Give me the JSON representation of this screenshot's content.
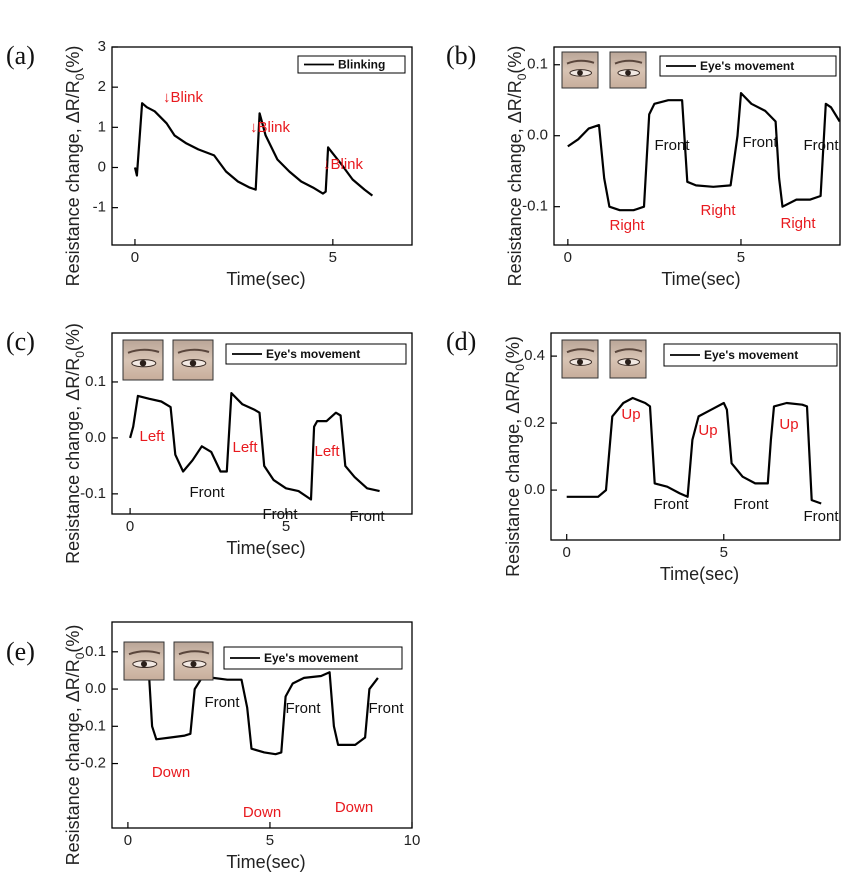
{
  "chart_data": [
    {
      "type": "line",
      "label": "(a)",
      "xlabel": "Time(sec)",
      "ylabel": [
        "Resistance change, ΔR/R",
        "0",
        "(%)"
      ],
      "xlim": [
        -0.58,
        7.0
      ],
      "ylim": [
        -1.93,
        3
      ],
      "xticks": [
        0,
        5
      ],
      "yticks": [
        -1,
        0,
        1,
        2,
        3
      ],
      "x": [
        0,
        0.05,
        0.18,
        0.3,
        0.5,
        0.8,
        1.0,
        1.3,
        1.6,
        2.0,
        2.3,
        2.6,
        2.9,
        3.05,
        3.15,
        3.3,
        3.6,
        3.9,
        4.2,
        4.5,
        4.75,
        4.82,
        4.88,
        5.0,
        5.2,
        5.5,
        5.8,
        6.0
      ],
      "series": [
        {
          "name": "Blinking",
          "color": "#000000",
          "values": [
            0,
            -0.2,
            1.6,
            1.5,
            1.4,
            1.1,
            0.8,
            0.6,
            0.45,
            0.3,
            -0.1,
            -0.35,
            -0.5,
            -0.55,
            1.35,
            0.8,
            0.2,
            -0.1,
            -0.35,
            -0.5,
            -0.65,
            -0.6,
            0.5,
            0.35,
            0.1,
            -0.3,
            -0.55,
            -0.7
          ]
        }
      ],
      "annotations": [
        {
          "text": "↓Blink",
          "color": "#e8191e"
        },
        {
          "text": "↓Blink",
          "color": "#e8191e"
        },
        {
          "text": "↓Blink",
          "color": "#e8191e"
        }
      ]
    },
    {
      "type": "line",
      "label": "(b)",
      "xlabel": "Time(sec)",
      "ylabel": [
        "Resistance change, ΔR/R",
        "0",
        "(%)"
      ],
      "xlim": [
        -0.4,
        7.86
      ],
      "ylim": [
        -0.154,
        0.125
      ],
      "xticks": [
        0,
        5
      ],
      "yticks": [
        -0.1,
        {
          "value": 0,
          "label": "0.0"
        },
        0.1
      ],
      "x": [
        0,
        0.3,
        0.6,
        0.9,
        1.05,
        1.2,
        1.5,
        1.9,
        2.2,
        2.35,
        2.5,
        2.9,
        3.3,
        3.45,
        3.7,
        4.2,
        4.7,
        4.9,
        5.0,
        5.3,
        5.7,
        6.0,
        6.1,
        6.2,
        6.6,
        7.0,
        7.3,
        7.45,
        7.6,
        7.85
      ],
      "series": [
        {
          "name": "Eye's movement",
          "color": "#000000",
          "values": [
            -0.015,
            -0.005,
            0.01,
            0.015,
            -0.06,
            -0.1,
            -0.105,
            -0.105,
            -0.1,
            0.03,
            0.045,
            0.05,
            0.05,
            -0.065,
            -0.07,
            -0.072,
            -0.07,
            0.0,
            0.06,
            0.045,
            0.035,
            0.02,
            -0.06,
            -0.1,
            -0.09,
            -0.09,
            -0.085,
            0.045,
            0.04,
            0.02
          ]
        }
      ],
      "annotations": [
        {
          "text": "Right",
          "color": "#e8191e"
        },
        {
          "text": "Front",
          "color": "#111111"
        },
        {
          "text": "Right",
          "color": "#e8191e"
        },
        {
          "text": "Front",
          "color": "#111111"
        },
        {
          "text": "Right",
          "color": "#e8191e"
        },
        {
          "text": "Front",
          "color": "#111111"
        }
      ]
    },
    {
      "type": "line",
      "label": "(c)",
      "xlabel": "Time(sec)",
      "ylabel": [
        "Resistance change, ΔR/R",
        "0",
        "(%)"
      ],
      "xlim": [
        -0.58,
        9.04
      ],
      "ylim": [
        -0.136,
        0.1875
      ],
      "xticks": [
        0,
        5
      ],
      "yticks": [
        -0.1,
        {
          "value": 0,
          "label": "0.0"
        },
        0.1
      ],
      "x": [
        0,
        0.1,
        0.25,
        0.6,
        1.0,
        1.3,
        1.45,
        1.7,
        2.0,
        2.3,
        2.6,
        2.9,
        3.1,
        3.25,
        3.6,
        4.0,
        4.15,
        4.3,
        4.6,
        5.0,
        5.4,
        5.8,
        5.9,
        6.0,
        6.3,
        6.6,
        6.75,
        6.9,
        7.2,
        7.6,
        8.0
      ],
      "series": [
        {
          "name": "Eye's movement",
          "color": "#000000",
          "values": [
            0.0,
            0.02,
            0.075,
            0.07,
            0.065,
            0.055,
            -0.03,
            -0.06,
            -0.04,
            -0.015,
            -0.025,
            -0.06,
            -0.06,
            0.08,
            0.06,
            0.05,
            0.045,
            -0.05,
            -0.075,
            -0.09,
            -0.095,
            -0.11,
            0.02,
            0.03,
            0.03,
            0.045,
            0.04,
            -0.05,
            -0.07,
            -0.09,
            -0.095
          ]
        }
      ],
      "annotations": [
        {
          "text": "Left",
          "color": "#e8191e"
        },
        {
          "text": "Front",
          "color": "#111111"
        },
        {
          "text": "Left",
          "color": "#e8191e"
        },
        {
          "text": "Front",
          "color": "#111111"
        },
        {
          "text": "Left",
          "color": "#e8191e"
        },
        {
          "text": "Front",
          "color": "#111111"
        }
      ]
    },
    {
      "type": "line",
      "label": "(d)",
      "xlabel": "Time(sec)",
      "ylabel": [
        "Resistance change, ΔR/R",
        "0",
        "(%)"
      ],
      "xlim": [
        -0.5,
        8.7
      ],
      "ylim": [
        -0.149,
        0.469
      ],
      "xticks": [
        0,
        5
      ],
      "yticks": [
        {
          "value": 0,
          "label": "0.0"
        },
        0.2,
        0.4
      ],
      "x": [
        0,
        0.5,
        1.0,
        1.25,
        1.45,
        1.8,
        2.1,
        2.5,
        2.65,
        2.8,
        3.2,
        3.6,
        3.85,
        4.0,
        4.2,
        4.6,
        5.0,
        5.1,
        5.25,
        5.6,
        6.0,
        6.4,
        6.5,
        6.6,
        7.0,
        7.5,
        7.65,
        7.8,
        8.1
      ],
      "series": [
        {
          "name": "Eye's movement",
          "color": "#000000",
          "values": [
            -0.02,
            -0.02,
            -0.02,
            0.0,
            0.22,
            0.26,
            0.275,
            0.26,
            0.25,
            0.02,
            0.01,
            -0.01,
            -0.02,
            0.15,
            0.22,
            0.24,
            0.26,
            0.24,
            0.08,
            0.04,
            0.02,
            0.02,
            0.15,
            0.25,
            0.26,
            0.255,
            0.25,
            -0.03,
            -0.04
          ]
        }
      ],
      "annotations": [
        {
          "text": "Up",
          "color": "#e8191e"
        },
        {
          "text": "Front",
          "color": "#111111"
        },
        {
          "text": "Up",
          "color": "#e8191e"
        },
        {
          "text": "Front",
          "color": "#111111"
        },
        {
          "text": "Up",
          "color": "#e8191e"
        },
        {
          "text": "Front",
          "color": "#111111"
        }
      ]
    },
    {
      "type": "line",
      "label": "(e)",
      "xlabel": "Time(sec)",
      "ylabel": [
        "Resistance change, ΔR/R",
        "0",
        "(%)"
      ],
      "xlim": [
        -0.56,
        10.0
      ],
      "ylim": [
        -0.373,
        0.18
      ],
      "xticks": [
        0,
        5,
        10
      ],
      "yticks": [
        -0.2,
        -0.1,
        {
          "value": 0,
          "label": "0.0"
        },
        0.1
      ],
      "x": [
        0,
        0.4,
        0.75,
        0.85,
        1.0,
        1.5,
        2.0,
        2.2,
        2.35,
        2.6,
        3.0,
        3.5,
        4.0,
        4.2,
        4.35,
        4.8,
        5.2,
        5.4,
        5.55,
        5.8,
        6.2,
        6.8,
        7.1,
        7.25,
        7.4,
        8.0,
        8.35,
        8.5,
        8.8
      ],
      "series": [
        {
          "name": "Eye's movement",
          "color": "#000000",
          "values": [
            0.035,
            0.035,
            0.03,
            -0.1,
            -0.135,
            -0.13,
            -0.125,
            -0.12,
            0.0,
            0.03,
            0.03,
            0.025,
            0.025,
            -0.05,
            -0.16,
            -0.17,
            -0.175,
            -0.17,
            -0.02,
            0.015,
            0.03,
            0.035,
            0.045,
            -0.1,
            -0.15,
            -0.15,
            -0.13,
            0.0,
            0.03
          ]
        }
      ],
      "annotations": [
        {
          "text": "Down",
          "color": "#e8191e"
        },
        {
          "text": "Front",
          "color": "#111111"
        },
        {
          "text": "Down",
          "color": "#e8191e"
        },
        {
          "text": "Front",
          "color": "#111111"
        },
        {
          "text": "Down",
          "color": "#e8191e"
        },
        {
          "text": "Front",
          "color": "#111111"
        }
      ]
    }
  ]
}
